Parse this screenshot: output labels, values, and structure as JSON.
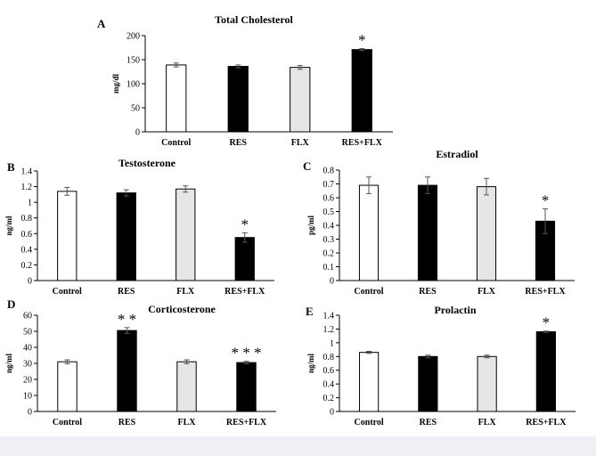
{
  "chart_data": [
    {
      "panel": "A",
      "type": "bar",
      "title": "Total Cholesterol",
      "ylabel": "mg/dl",
      "categories": [
        "Control",
        "RES",
        "FLX",
        "RES+FLX"
      ],
      "values": [
        139,
        136,
        134,
        171
      ],
      "errors": [
        4,
        3,
        4,
        2
      ],
      "ylim": [
        0,
        200
      ],
      "yticks": [
        "0",
        "50",
        "100",
        "150",
        "200"
      ],
      "annotations": [
        "",
        "",
        "",
        "*"
      ]
    },
    {
      "panel": "B",
      "type": "bar",
      "title": "Testosterone",
      "ylabel": "ng/ml",
      "categories": [
        "Control",
        "RES",
        "FLX",
        "RES+FLX"
      ],
      "values": [
        1.14,
        1.12,
        1.17,
        0.55
      ],
      "errors": [
        0.05,
        0.04,
        0.04,
        0.06
      ],
      "ylim": [
        0,
        1.4
      ],
      "yticks": [
        "0",
        "0.2",
        "0.4",
        "0.6",
        "0.8",
        "1",
        "1.2",
        "1.4"
      ],
      "annotations": [
        "",
        "",
        "",
        "*"
      ]
    },
    {
      "panel": "C",
      "type": "bar",
      "title": "Estradiol",
      "ylabel": "pg/ml",
      "categories": [
        "Control",
        "RES",
        "FLX",
        "RES+FLX"
      ],
      "values": [
        0.69,
        0.69,
        0.68,
        0.43
      ],
      "errors": [
        0.06,
        0.06,
        0.06,
        0.09
      ],
      "ylim": [
        0,
        0.8
      ],
      "yticks": [
        "0",
        "0.1",
        "0.2",
        "0.3",
        "0.4",
        "0.5",
        "0.6",
        "0.7",
        "0.8"
      ],
      "annotations": [
        "",
        "",
        "",
        "*"
      ]
    },
    {
      "panel": "D",
      "type": "bar",
      "title": "Corticosterone",
      "ylabel": "ng/ml",
      "categories": [
        "Control",
        "RES",
        "FLX",
        "RES+FLX"
      ],
      "values": [
        31,
        50.5,
        31,
        30.5
      ],
      "errors": [
        1.2,
        1.8,
        1.2,
        0.8
      ],
      "ylim": [
        0,
        60
      ],
      "yticks": [
        "0",
        "10",
        "20",
        "30",
        "40",
        "50",
        "60"
      ],
      "annotations": [
        "",
        "* *",
        "",
        "* * *"
      ]
    },
    {
      "panel": "E",
      "type": "bar",
      "title": "Prolactin",
      "ylabel": "ng/ml",
      "categories": [
        "Control",
        "RES",
        "FLX",
        "RES+FLX"
      ],
      "values": [
        0.86,
        0.8,
        0.8,
        1.16
      ],
      "errors": [
        0.015,
        0.02,
        0.02,
        0.01
      ],
      "ylim": [
        0,
        1.4
      ],
      "yticks": [
        "0",
        "0.2",
        "0.4",
        "0.6",
        "0.8",
        "1",
        "1.2",
        "1.4"
      ],
      "annotations": [
        "",
        "",
        "",
        "*"
      ]
    }
  ],
  "bar_fills": [
    "#ffffff",
    "#000000",
    "#e6e6e6",
    "#000000"
  ]
}
